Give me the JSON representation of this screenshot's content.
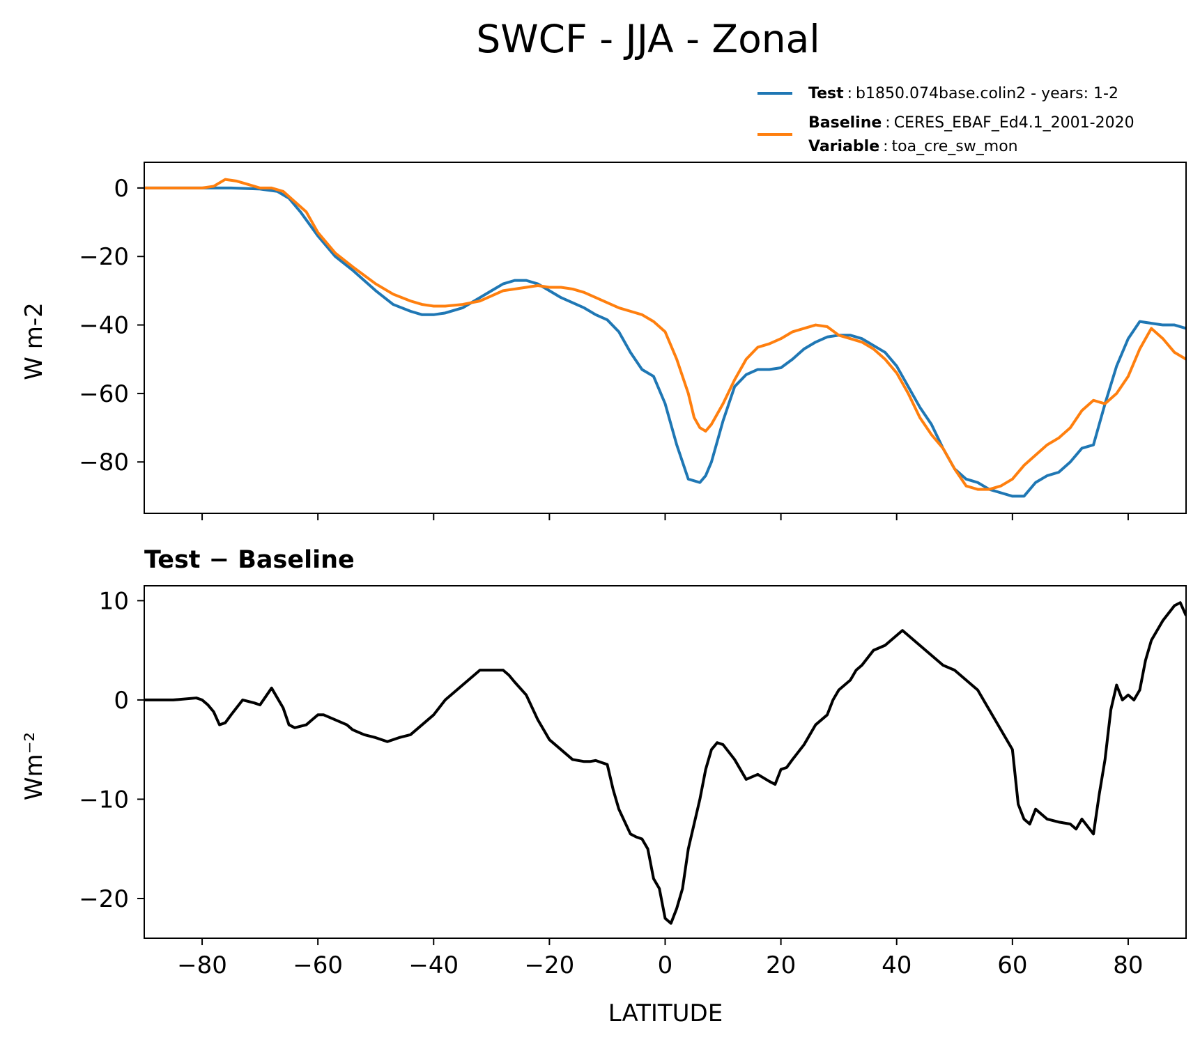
{
  "figure": {
    "title": "SWCF - JJA - Zonal",
    "xlabel": "LATITUDE"
  },
  "legend": {
    "test": {
      "key": "Test",
      "sep": ":",
      "value": "b1850.074base.colin2 - years: 1-2",
      "color": "#1f77b4"
    },
    "baseline": {
      "key": "Baseline",
      "sep": ":",
      "value": "CERES_EBAF_Ed4.1_2001-2020",
      "color": "#ff7f0e"
    },
    "variable": {
      "key": "Variable",
      "sep": ":",
      "value": "toa_cre_sw_mon"
    }
  },
  "chart_data": [
    {
      "type": "line",
      "ylabel": "W m-2",
      "xlim": [
        -90,
        90
      ],
      "ylim": [
        -95,
        7.5
      ],
      "xticks": [
        -80,
        -60,
        -40,
        -20,
        0,
        20,
        40,
        60,
        80
      ],
      "yticks": [
        0,
        -20,
        -40,
        -60,
        -80
      ],
      "ytick_labels": [
        "0",
        "−20",
        "−40",
        "−60",
        "−80"
      ],
      "series": [
        {
          "name": "Test",
          "color": "#1f77b4",
          "x": [
            -90,
            -80,
            -75,
            -70,
            -67,
            -65,
            -63,
            -60,
            -57,
            -54,
            -50,
            -47,
            -44,
            -42,
            -40,
            -38,
            -35,
            -32,
            -30,
            -28,
            -26,
            -24,
            -22,
            -20,
            -18,
            -16,
            -14,
            -12,
            -10,
            -8,
            -6,
            -4,
            -2,
            0,
            2,
            4,
            6,
            7,
            8,
            10,
            12,
            14,
            16,
            18,
            20,
            22,
            24,
            26,
            28,
            30,
            32,
            34,
            36,
            38,
            40,
            42,
            44,
            46,
            48,
            50,
            52,
            54,
            56,
            58,
            60,
            62,
            64,
            66,
            68,
            70,
            72,
            74,
            76,
            78,
            80,
            82,
            84,
            86,
            88,
            90
          ],
          "values": [
            0,
            0,
            0,
            -0.3,
            -1,
            -3,
            -7,
            -14,
            -20,
            -24,
            -30,
            -34,
            -36,
            -37,
            -37,
            -36.5,
            -35,
            -32,
            -30,
            -28,
            -27,
            -27,
            -28,
            -30,
            -32,
            -33.5,
            -35,
            -37,
            -38.5,
            -42,
            -48,
            -53,
            -55,
            -63,
            -75,
            -85,
            -86,
            -84,
            -80,
            -68,
            -58,
            -54.5,
            -53,
            -53,
            -52.5,
            -50,
            -47,
            -45,
            -43.5,
            -43,
            -43,
            -44,
            -46,
            -48,
            -52,
            -58,
            -64,
            -69,
            -76,
            -82,
            -85,
            -86,
            -88,
            -89,
            -90,
            -90,
            -86,
            -84,
            -83,
            -80,
            -76,
            -75,
            -63,
            -52,
            -44,
            -39,
            -39.5,
            -40,
            -40,
            -41
          ]
        },
        {
          "name": "Baseline",
          "color": "#ff7f0e",
          "x": [
            -90,
            -80,
            -78,
            -76,
            -74,
            -72,
            -70,
            -68,
            -66,
            -64,
            -62,
            -60,
            -57,
            -54,
            -50,
            -47,
            -44,
            -42,
            -40,
            -38,
            -35,
            -32,
            -30,
            -28,
            -26,
            -24,
            -22,
            -20,
            -18,
            -16,
            -14,
            -12,
            -10,
            -8,
            -6,
            -4,
            -2,
            0,
            2,
            4,
            5,
            6,
            7,
            8,
            10,
            12,
            14,
            16,
            18,
            20,
            22,
            24,
            26,
            28,
            30,
            32,
            34,
            36,
            38,
            40,
            42,
            44,
            46,
            48,
            50,
            52,
            54,
            56,
            58,
            60,
            62,
            64,
            66,
            68,
            70,
            72,
            74,
            76,
            78,
            80,
            82,
            84,
            86,
            88,
            90
          ],
          "values": [
            0,
            0,
            0.5,
            2.5,
            2,
            1,
            0,
            0,
            -1,
            -4,
            -7,
            -13,
            -19,
            -23,
            -28,
            -31,
            -33,
            -34,
            -34.5,
            -34.5,
            -34,
            -33,
            -31.5,
            -30,
            -29.5,
            -29,
            -28.5,
            -29,
            -29,
            -29.5,
            -30.5,
            -32,
            -33.5,
            -35,
            -36,
            -37,
            -39,
            -42,
            -50,
            -60,
            -67,
            -70,
            -71,
            -69,
            -63,
            -56,
            -50,
            -46.5,
            -45.5,
            -44,
            -42,
            -41,
            -40,
            -40.5,
            -43,
            -44,
            -45,
            -47,
            -50,
            -54,
            -60,
            -67,
            -72,
            -76,
            -82,
            -87,
            -88,
            -88,
            -87,
            -85,
            -81,
            -78,
            -75,
            -73,
            -70,
            -65,
            -62,
            -63,
            -60,
            -55,
            -47,
            -41,
            -44,
            -48,
            -50
          ]
        }
      ]
    },
    {
      "type": "line",
      "title": "Test − Baseline",
      "ylabel": "Wm⁻²",
      "xlim": [
        -90,
        90
      ],
      "ylim": [
        -24,
        11.5
      ],
      "xticks": [
        -80,
        -60,
        -40,
        -20,
        0,
        20,
        40,
        60,
        80
      ],
      "xtick_labels": [
        "−80",
        "−60",
        "−40",
        "−20",
        "0",
        "20",
        "40",
        "60",
        "80"
      ],
      "yticks": [
        10,
        0,
        -10,
        -20
      ],
      "ytick_labels": [
        "10",
        "0",
        "−10",
        "−20"
      ],
      "series": [
        {
          "name": "Test − Baseline",
          "color": "#000000",
          "x": [
            -90,
            -85,
            -81,
            -80,
            -79,
            -78,
            -77,
            -76,
            -75,
            -73,
            -71,
            -70,
            -68,
            -66,
            -65,
            -64,
            -62,
            -61,
            -60,
            -59,
            -57,
            -55,
            -54,
            -52,
            -50,
            -48,
            -46,
            -44,
            -42,
            -40,
            -38,
            -36,
            -34,
            -32,
            -30,
            -28,
            -27,
            -26,
            -24,
            -22,
            -20,
            -18,
            -16,
            -14,
            -13,
            -12,
            -11,
            -10,
            -9,
            -8,
            -6,
            -5,
            -4,
            -3,
            -2,
            -1,
            0,
            1,
            2,
            3,
            4,
            5,
            6,
            7,
            8,
            9,
            10,
            12,
            13,
            14,
            16,
            18,
            19,
            20,
            21,
            22,
            24,
            26,
            28,
            29,
            30,
            31,
            32,
            33,
            34,
            36,
            38,
            40,
            41,
            42,
            44,
            46,
            48,
            50,
            52,
            54,
            56,
            58,
            60,
            61,
            62,
            63,
            64,
            66,
            68,
            70,
            71,
            72,
            74,
            75,
            76,
            77,
            78,
            79,
            80,
            81,
            82,
            83,
            84,
            86,
            88,
            89,
            90
          ],
          "values": [
            0,
            0,
            0.2,
            0,
            -0.5,
            -1.2,
            -2.5,
            -2.3,
            -1.5,
            0,
            -0.3,
            -0.5,
            1.2,
            -0.8,
            -2.5,
            -2.8,
            -2.5,
            -2,
            -1.5,
            -1.5,
            -2,
            -2.5,
            -3,
            -3.5,
            -3.8,
            -4.2,
            -3.8,
            -3.5,
            -2.5,
            -1.5,
            0,
            1,
            2,
            3,
            3,
            3,
            2.5,
            1.8,
            0.5,
            -2,
            -4,
            -5,
            -6,
            -6.2,
            -6.2,
            -6.1,
            -6.3,
            -6.5,
            -9,
            -11,
            -13.5,
            -13.8,
            -14,
            -15,
            -18,
            -19,
            -22,
            -22.5,
            -21,
            -19,
            -15,
            -12.5,
            -10,
            -7,
            -5,
            -4.3,
            -4.5,
            -6,
            -7,
            -8,
            -7.5,
            -8.2,
            -8.5,
            -7,
            -6.8,
            -6,
            -4.5,
            -2.5,
            -1.5,
            0,
            1,
            1.5,
            2,
            3,
            3.5,
            5,
            5.5,
            6.5,
            7,
            6.5,
            5.5,
            4.5,
            3.5,
            3,
            2,
            1,
            -1,
            -3,
            -5,
            -10.5,
            -12,
            -12.5,
            -11,
            -12,
            -12.3,
            -12.5,
            -13,
            -12,
            -13.5,
            -9.5,
            -6,
            -1,
            1.5,
            0,
            0.5,
            0,
            1,
            4,
            6,
            8,
            9.5,
            9.8,
            8.5
          ]
        }
      ]
    }
  ]
}
